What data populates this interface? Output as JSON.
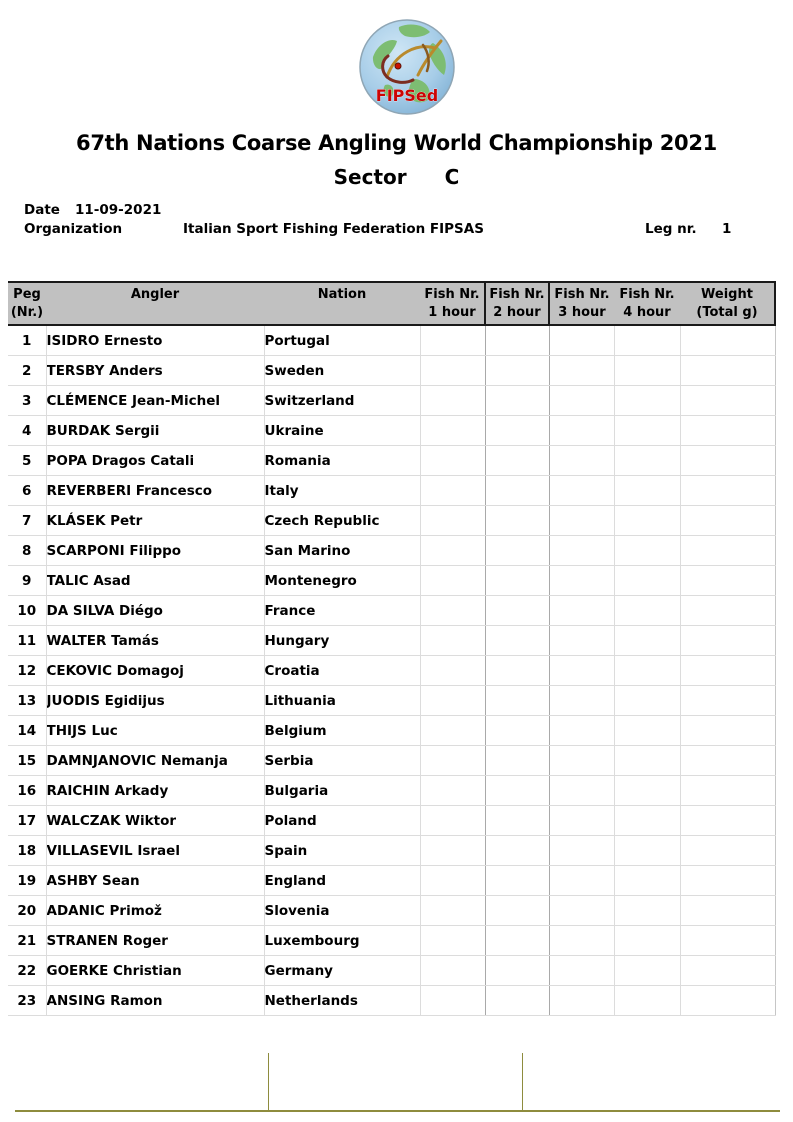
{
  "logo": {
    "text": "FIPSed",
    "text_color": "#cc0404"
  },
  "title": {
    "main": "67th Nations Coarse Angling World Championship 2021",
    "sector_label": "Sector",
    "sector_value": "C"
  },
  "info": {
    "date_label": "Date",
    "date_value": "11-09-2021",
    "org_label": "Organization",
    "org_value": "Italian Sport Fishing Federation FIPSAS",
    "leg_label": "Leg nr.",
    "leg_value": "1"
  },
  "table": {
    "columns": [
      {
        "id": "peg",
        "line1": "Peg",
        "line2": "(Nr.)"
      },
      {
        "id": "angler",
        "line1": "Angler",
        "line2": ""
      },
      {
        "id": "nation",
        "line1": "Nation",
        "line2": ""
      },
      {
        "id": "fish1",
        "line1": "Fish Nr.",
        "line2": "1 hour"
      },
      {
        "id": "fish2",
        "line1": "Fish Nr.",
        "line2": "2 hour"
      },
      {
        "id": "fish3",
        "line1": "Fish Nr.",
        "line2": "3 hour"
      },
      {
        "id": "fish4",
        "line1": "Fish Nr.",
        "line2": "4 hour"
      },
      {
        "id": "weight",
        "line1": "Weight",
        "line2": "(Total g)"
      }
    ],
    "rows": [
      {
        "peg": "1",
        "angler": "ISIDRO Ernesto",
        "nation": "Portugal",
        "fish1": "",
        "fish2": "",
        "fish3": "",
        "fish4": "",
        "weight": ""
      },
      {
        "peg": "2",
        "angler": "TERSBY Anders",
        "nation": "Sweden",
        "fish1": "",
        "fish2": "",
        "fish3": "",
        "fish4": "",
        "weight": ""
      },
      {
        "peg": "3",
        "angler": "CLÉMENCE Jean-Michel",
        "nation": "Switzerland",
        "fish1": "",
        "fish2": "",
        "fish3": "",
        "fish4": "",
        "weight": ""
      },
      {
        "peg": "4",
        "angler": "BURDAK Sergii",
        "nation": "Ukraine",
        "fish1": "",
        "fish2": "",
        "fish3": "",
        "fish4": "",
        "weight": ""
      },
      {
        "peg": "5",
        "angler": "POPA Dragos Catali",
        "nation": "Romania",
        "fish1": "",
        "fish2": "",
        "fish3": "",
        "fish4": "",
        "weight": ""
      },
      {
        "peg": "6",
        "angler": "REVERBERI Francesco",
        "nation": "Italy",
        "fish1": "",
        "fish2": "",
        "fish3": "",
        "fish4": "",
        "weight": ""
      },
      {
        "peg": "7",
        "angler": "KLÁSEK Petr",
        "nation": "Czech Republic",
        "fish1": "",
        "fish2": "",
        "fish3": "",
        "fish4": "",
        "weight": ""
      },
      {
        "peg": "8",
        "angler": "SCARPONI Filippo",
        "nation": "San Marino",
        "fish1": "",
        "fish2": "",
        "fish3": "",
        "fish4": "",
        "weight": ""
      },
      {
        "peg": "9",
        "angler": "TALIC Asad",
        "nation": "Montenegro",
        "fish1": "",
        "fish2": "",
        "fish3": "",
        "fish4": "",
        "weight": ""
      },
      {
        "peg": "10",
        "angler": "DA SILVA Diégo",
        "nation": "France",
        "fish1": "",
        "fish2": "",
        "fish3": "",
        "fish4": "",
        "weight": ""
      },
      {
        "peg": "11",
        "angler": "WALTER Tamás",
        "nation": "Hungary",
        "fish1": "",
        "fish2": "",
        "fish3": "",
        "fish4": "",
        "weight": ""
      },
      {
        "peg": "12",
        "angler": "CEKOVIC Domagoj",
        "nation": "Croatia",
        "fish1": "",
        "fish2": "",
        "fish3": "",
        "fish4": "",
        "weight": ""
      },
      {
        "peg": "13",
        "angler": "JUODIS Egidijus",
        "nation": "Lithuania",
        "fish1": "",
        "fish2": "",
        "fish3": "",
        "fish4": "",
        "weight": ""
      },
      {
        "peg": "14",
        "angler": "THIJS Luc",
        "nation": "Belgium",
        "fish1": "",
        "fish2": "",
        "fish3": "",
        "fish4": "",
        "weight": ""
      },
      {
        "peg": "15",
        "angler": "DAMNJANOVIC Nemanja",
        "nation": "Serbia",
        "fish1": "",
        "fish2": "",
        "fish3": "",
        "fish4": "",
        "weight": ""
      },
      {
        "peg": "16",
        "angler": "RAICHIN Arkady",
        "nation": "Bulgaria",
        "fish1": "",
        "fish2": "",
        "fish3": "",
        "fish4": "",
        "weight": ""
      },
      {
        "peg": "17",
        "angler": "WALCZAK Wiktor",
        "nation": "Poland",
        "fish1": "",
        "fish2": "",
        "fish3": "",
        "fish4": "",
        "weight": ""
      },
      {
        "peg": "18",
        "angler": "VILLASEVIL Israel",
        "nation": "Spain",
        "fish1": "",
        "fish2": "",
        "fish3": "",
        "fish4": "",
        "weight": ""
      },
      {
        "peg": "19",
        "angler": "ASHBY Sean",
        "nation": "England",
        "fish1": "",
        "fish2": "",
        "fish3": "",
        "fish4": "",
        "weight": ""
      },
      {
        "peg": "20",
        "angler": "ADANIC Primož",
        "nation": "Slovenia",
        "fish1": "",
        "fish2": "",
        "fish3": "",
        "fish4": "",
        "weight": ""
      },
      {
        "peg": "21",
        "angler": "STRANEN Roger",
        "nation": "Luxembourg",
        "fish1": "",
        "fish2": "",
        "fish3": "",
        "fish4": "",
        "weight": ""
      },
      {
        "peg": "22",
        "angler": "GOERKE Christian",
        "nation": "Germany",
        "fish1": "",
        "fish2": "",
        "fish3": "",
        "fish4": "",
        "weight": ""
      },
      {
        "peg": "23",
        "angler": "ANSING Ramon",
        "nation": "Netherlands",
        "fish1": "",
        "fish2": "",
        "fish3": "",
        "fish4": "",
        "weight": ""
      }
    ]
  },
  "colors": {
    "header_bg": "#c1c1c1",
    "header_border": "#1a1a1a",
    "grid_light": "#dcdcdc",
    "grid_medium": "#a9a9a9",
    "footer_line": "#8e8c3e",
    "logo_red": "#cc0404"
  }
}
